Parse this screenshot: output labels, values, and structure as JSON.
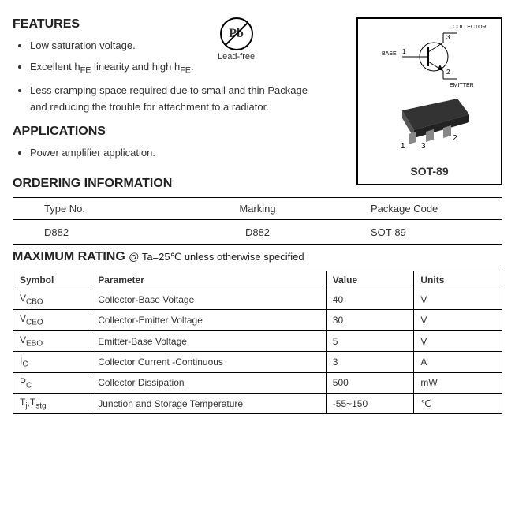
{
  "leadfree": {
    "symbol": "Pb",
    "label": "Lead-free"
  },
  "features": {
    "heading": "FEATURES",
    "items": [
      "Low saturation voltage.",
      "Excellent h<sub>FE</sub> linearity and high h<sub>FE</sub>.",
      "Less cramping space required due to small and thin Package and reducing the trouble for attachment to a radiator."
    ]
  },
  "applications": {
    "heading": "APPLICATIONS",
    "items": [
      "Power amplifier application."
    ]
  },
  "package": {
    "schem_labels": {
      "collector": "COLLECTOR",
      "base": "BASE",
      "emitter": "EMITTER",
      "pin1": "1",
      "pin2": "2",
      "pin3": "3"
    },
    "pins": {
      "p1": "1",
      "p2": "2",
      "p3": "3"
    },
    "name": "SOT-89"
  },
  "ordering": {
    "heading": "ORDERING INFORMATION",
    "cols": [
      "Type No.",
      "Marking",
      "Package Code"
    ],
    "row": [
      "D882",
      "D882",
      "SOT-89"
    ]
  },
  "maxrating": {
    "heading": "MAXIMUM RATING",
    "condition": "@ Ta=25℃ unless otherwise specified",
    "cols": [
      "Symbol",
      "Parameter",
      "Value",
      "Units"
    ],
    "rows": [
      {
        "sym": "V<sub>CBO</sub>",
        "param": "Collector-Base Voltage",
        "val": "40",
        "unit": "V"
      },
      {
        "sym": "V<sub>CEO</sub>",
        "param": "Collector-Emitter Voltage",
        "val": "30",
        "unit": "V"
      },
      {
        "sym": "V<sub>EBO</sub>",
        "param": "Emitter-Base Voltage",
        "val": "5",
        "unit": "V"
      },
      {
        "sym": "I<sub>C</sub>",
        "param": "Collector Current -Continuous",
        "val": "3",
        "unit": "A"
      },
      {
        "sym": "P<sub>C</sub>",
        "param": "Collector Dissipation",
        "val": "500",
        "unit": "mW"
      },
      {
        "sym": "T<sub>j</sub>,T<sub>stg</sub>",
        "param": "Junction and Storage Temperature",
        "val": "-55~150",
        "unit": "℃"
      }
    ]
  }
}
